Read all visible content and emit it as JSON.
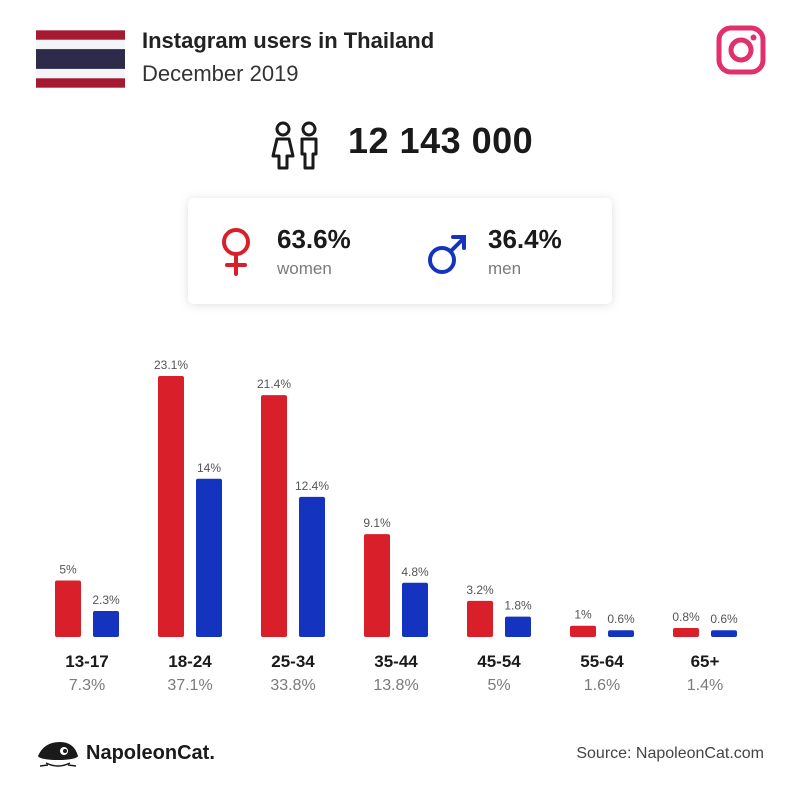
{
  "header": {
    "title": "Instagram users in Thailand",
    "subtitle": "December 2019"
  },
  "total_users": "12 143 000",
  "gender": {
    "women_pct": "63.6%",
    "women_label": "women",
    "men_pct": "36.4%",
    "men_label": "men"
  },
  "footer": {
    "brand": "NapoleonCat.",
    "source": "Source: NapoleonCat.com"
  },
  "colors": {
    "women": "#d91f2a",
    "men": "#1434c0",
    "instagram": "#e1306c",
    "flag_red": "#a51931",
    "flag_blue": "#2d2a4a"
  },
  "icons": [
    "thailand-flag",
    "instagram-icon",
    "people-icon",
    "female-symbol-icon",
    "male-symbol-icon",
    "napoleoncat-logo"
  ],
  "chart_data": {
    "type": "bar",
    "categories": [
      "13-17",
      "18-24",
      "25-34",
      "35-44",
      "45-54",
      "55-64",
      "65+"
    ],
    "category_totals": [
      "7.3%",
      "37.1%",
      "33.8%",
      "13.8%",
      "5%",
      "1.6%",
      "1.4%"
    ],
    "series": [
      {
        "values": [
          5,
          23.1,
          21.4,
          9.1,
          3.2,
          1,
          0.8
        ],
        "labels": [
          "5%",
          "23.1%",
          "21.4%",
          "9.1%",
          "3.2%",
          "1%",
          "0.8%"
        ],
        "color": "#d91f2a"
      },
      {
        "values": [
          2.3,
          14,
          12.4,
          4.8,
          1.8,
          0.6,
          0.6
        ],
        "labels": [
          "2.3%",
          "14%",
          "12.4%",
          "4.8%",
          "1.8%",
          "0.6%",
          "0.6%"
        ],
        "color": "#1434c0"
      }
    ],
    "grid": false,
    "legend": "none"
  }
}
